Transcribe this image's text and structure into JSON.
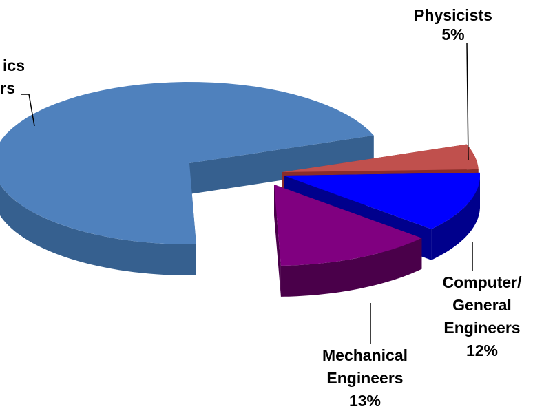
{
  "chart_data": {
    "type": "pie3d",
    "categories": [
      [
        "Physicists"
      ],
      [
        "Computer/",
        "General",
        "Engineers"
      ],
      [
        "Mechanical",
        "Engineers"
      ],
      [
        "ics",
        "rs"
      ]
    ],
    "values": [
      5,
      12,
      13,
      70
    ],
    "value_labels": [
      "5%",
      "12%",
      "13%",
      null
    ],
    "colors": [
      "#c0504d",
      "#0000ff",
      "#800080",
      "#4f81bd"
    ],
    "side_colors": [
      "#8a2d2a",
      "#00008c",
      "#4a004a",
      "#36608f"
    ]
  }
}
